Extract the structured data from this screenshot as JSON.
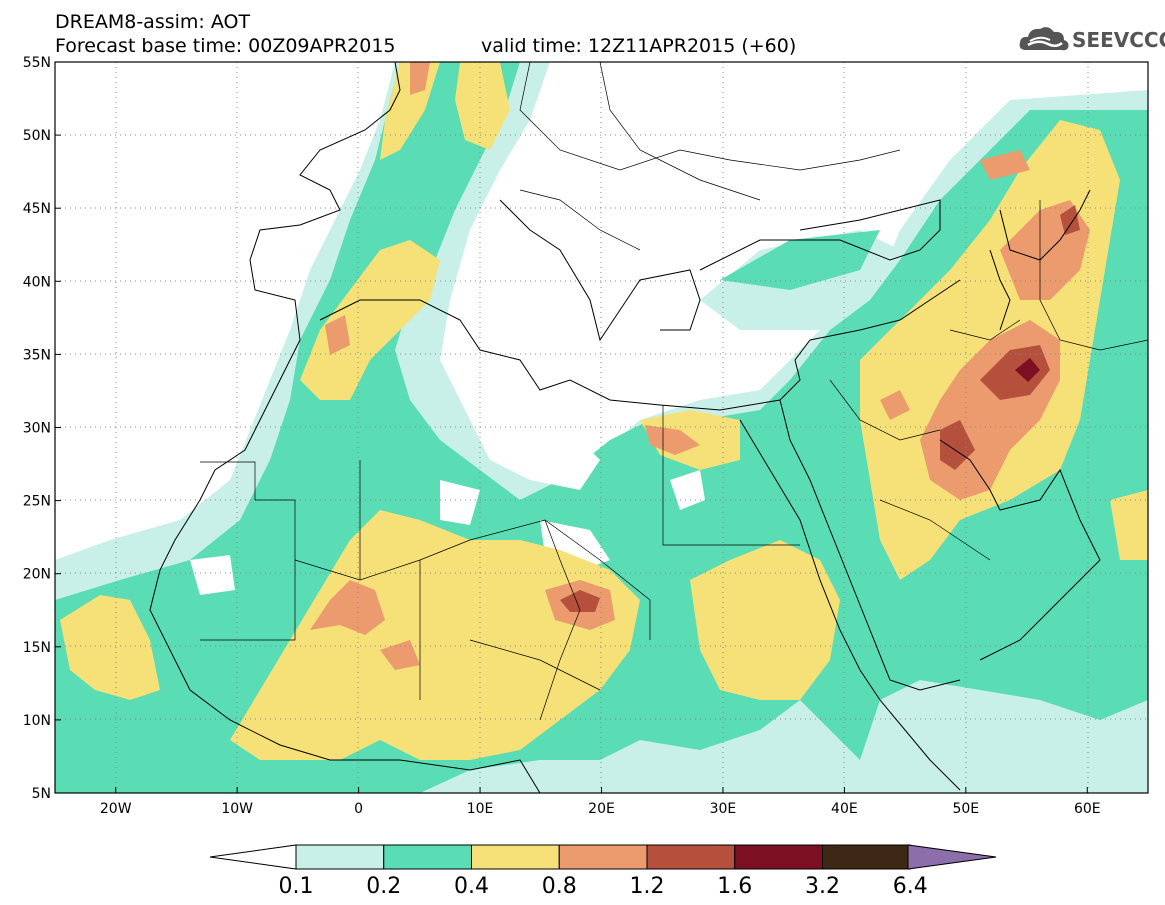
{
  "header": {
    "title": "DREAM8-assim: AOT",
    "forecast_base": "Forecast base time: 00Z09APR2015",
    "valid_time": "valid time: 12Z11APR2015 (+60)"
  },
  "logo": {
    "text": "SEEVCCC",
    "icon": "cloud-icon",
    "color": "#555555"
  },
  "map": {
    "lat_labels": [
      "55N",
      "50N",
      "45N",
      "40N",
      "35N",
      "30N",
      "25N",
      "20N",
      "15N",
      "10N",
      "5N"
    ],
    "lon_labels": [
      "20W",
      "10W",
      "0",
      "10E",
      "20E",
      "30E",
      "40E",
      "50E",
      "60E"
    ],
    "lon_range": [
      -25,
      65
    ],
    "lat_range": [
      5,
      55
    ]
  },
  "colorbar": {
    "labels": [
      "0.1",
      "0.2",
      "0.4",
      "0.8",
      "1.2",
      "1.6",
      "3.2",
      "6.4"
    ],
    "colors": [
      "#ffffff",
      "#c8f0e8",
      "#5adcb4",
      "#f5e178",
      "#eb9b6e",
      "#b4503c",
      "#7d0f23",
      "#3c2814",
      "#8c6eaa"
    ]
  }
}
